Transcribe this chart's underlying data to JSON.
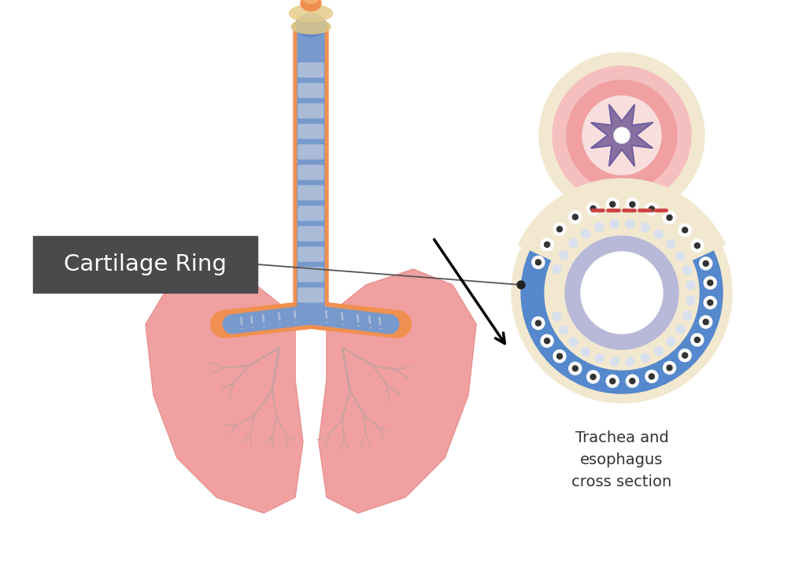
{
  "bg_color": "#ffffff",
  "label_box_color": "#4a4a4a",
  "label_text": "Cartilage Ring",
  "label_text_color": "#ffffff",
  "annotation_text": "Trachea and\nesophagus\ncross section",
  "annotation_text_color": "#333333",
  "cross_section": {
    "outer_beige": "#f2e8d0",
    "esophagus_outer_pink": "#f5bfbf",
    "esophagus_mid_pink": "#f0a0a0",
    "esophagus_inner_light": "#f9dede",
    "esophagus_wall_purple": "#8870a0",
    "esophagus_wall_dark": "#7060a0",
    "trachea_blue_ring": "#5588cc",
    "trachea_inner_beige": "#f2e8d0",
    "trachea_lumen_white": "#ffffff",
    "trachea_back_lavender": "#b8b8d8",
    "red_dashes_color": "#cc4444"
  },
  "lung_colors": {
    "lung_fill": "#f0a0a0",
    "lung_highlight": "#f8c8c8",
    "bronchi_fill": "#7799cc",
    "trachea_fill": "#7799cc",
    "trachea_cartilage": "#aabbd8",
    "orange_accent": "#f09050",
    "orange_light": "#f5b070",
    "larynx_blue": "#6688cc",
    "bronchi_dashes": "#8aabcc"
  }
}
